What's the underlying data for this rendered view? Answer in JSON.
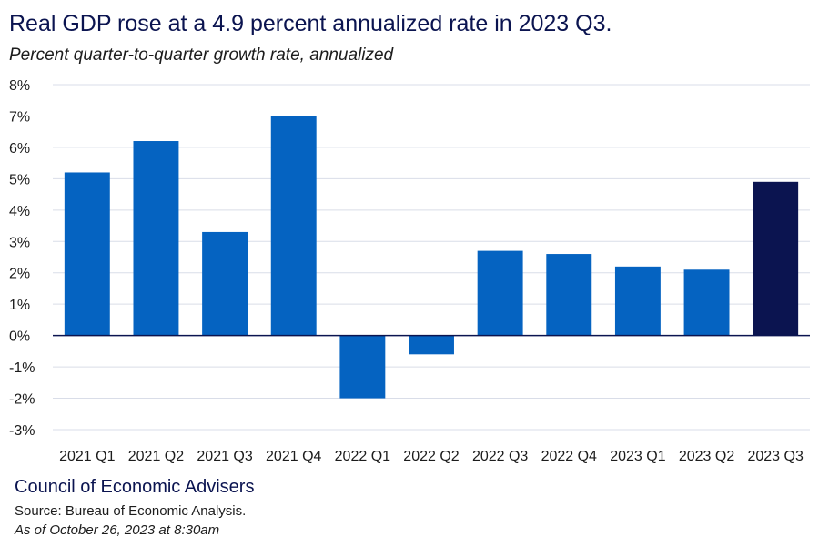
{
  "title": "Real GDP rose at a 4.9 percent annualized rate in 2023 Q3.",
  "subtitle": "Percent quarter-to-quarter growth rate, annualized",
  "footer": {
    "organization": "Council of Economic Advisers",
    "source": "Source: Bureau of Economic Analysis.",
    "as_of": "As of October 26, 2023 at 8:30am"
  },
  "colors": {
    "bar": "#0563c1",
    "highlight": "#0b1450",
    "grid": "#d9dde8",
    "zero_line": "#0b1450"
  },
  "chart_data": {
    "type": "bar",
    "title": "Real GDP rose at a 4.9 percent annualized rate in 2023 Q3.",
    "subtitle": "Percent quarter-to-quarter growth rate, annualized",
    "xlabel": "",
    "ylabel": "",
    "categories": [
      "2021 Q1",
      "2021 Q2",
      "2021 Q3",
      "2021 Q4",
      "2022 Q1",
      "2022 Q2",
      "2022 Q3",
      "2022 Q4",
      "2023 Q1",
      "2023 Q2",
      "2023 Q3"
    ],
    "values": [
      5.2,
      6.2,
      3.3,
      7.0,
      -2.0,
      -0.6,
      2.7,
      2.6,
      2.2,
      2.1,
      4.9
    ],
    "highlight_category": "2023 Q3",
    "ylim": [
      -3,
      8
    ],
    "yticks": [
      8,
      7,
      6,
      5,
      4,
      3,
      2,
      1,
      0,
      -1,
      -2,
      -3
    ],
    "ytick_labels": [
      "8%",
      "7%",
      "6%",
      "5%",
      "4%",
      "3%",
      "2%",
      "1%",
      "0%",
      "-1%",
      "-2%",
      "-3%"
    ],
    "grid": true,
    "legend": "none"
  }
}
